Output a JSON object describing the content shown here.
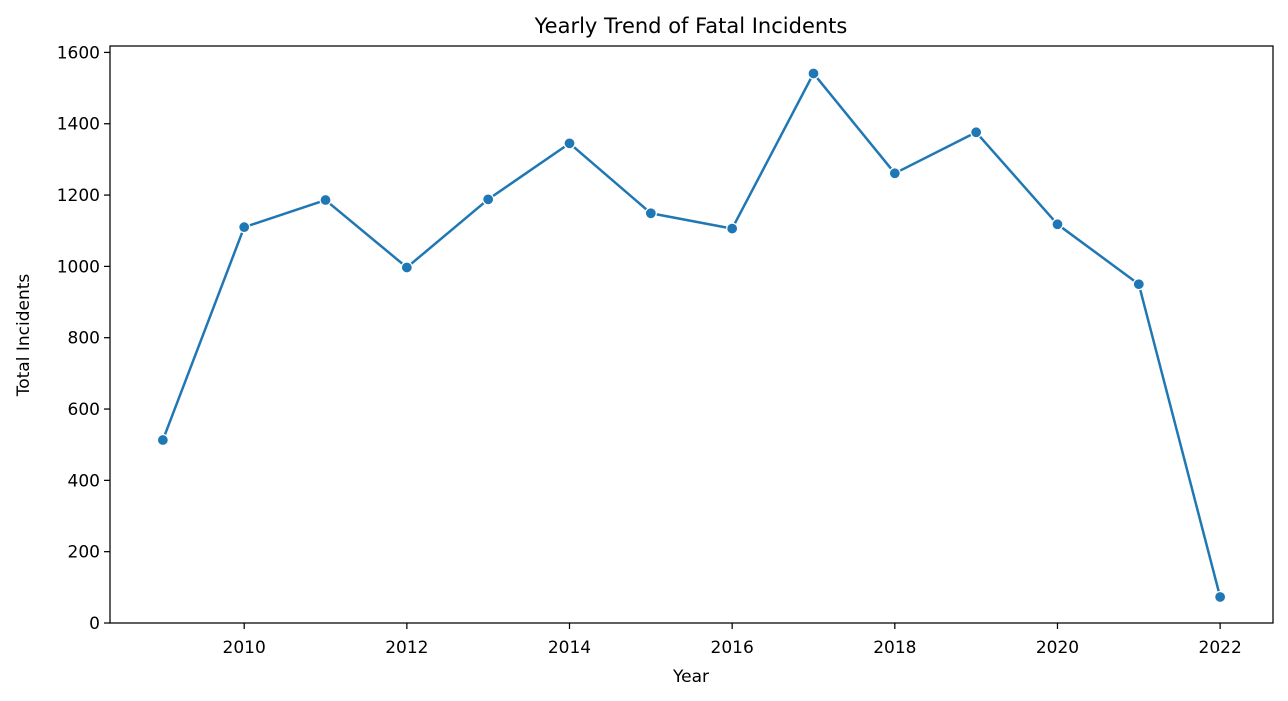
{
  "chart_data": {
    "type": "line",
    "title": "Yearly Trend of Fatal Incidents",
    "xlabel": "Year",
    "ylabel": "Total Incidents",
    "x": [
      2009,
      2010,
      2011,
      2012,
      2013,
      2014,
      2015,
      2016,
      2017,
      2018,
      2019,
      2020,
      2021,
      2022
    ],
    "series": [
      {
        "values": [
          513,
          1110,
          1186,
          997,
          1188,
          1345,
          1149,
          1106,
          1541,
          1261,
          1376,
          1118,
          950,
          73
        ],
        "color": "#1f77b4"
      }
    ],
    "xticks": [
      "2010",
      "2012",
      "2014",
      "2016",
      "2018",
      "2020",
      "2022"
    ],
    "yticks": [
      "0",
      "200",
      "400",
      "600",
      "800",
      "1000",
      "1200",
      "1400",
      "1600"
    ],
    "xlim": [
      2008.35,
      2022.65
    ],
    "ylim": [
      0,
      1618
    ],
    "grid": false,
    "legend": "none"
  }
}
